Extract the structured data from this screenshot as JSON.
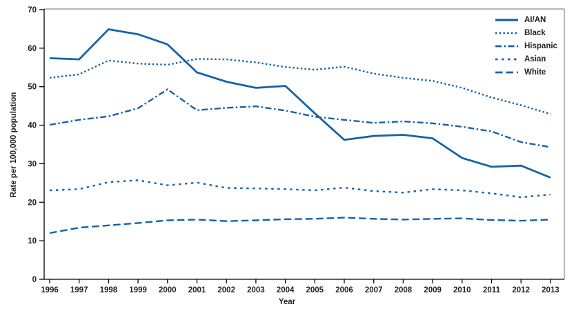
{
  "figure": {
    "ylabel": "Rate per 100,000 population",
    "xlabel": "Year"
  },
  "chart_data": {
    "type": "line",
    "x": [
      1996,
      1997,
      1998,
      1999,
      2000,
      2001,
      2002,
      2003,
      2004,
      2005,
      2006,
      2007,
      2008,
      2009,
      2010,
      2011,
      2012,
      2013
    ],
    "series": [
      {
        "name": "AI/AN",
        "line_style": "solid",
        "values": [
          57.4,
          57.1,
          64.9,
          63.6,
          61.0,
          53.7,
          51.3,
          49.7,
          50.2,
          43.1,
          36.2,
          37.2,
          37.5,
          36.6,
          31.5,
          29.2,
          29.5,
          26.4
        ]
      },
      {
        "name": "Black",
        "line_style": "dotted",
        "values": [
          52.3,
          53.2,
          56.8,
          56.0,
          55.7,
          57.2,
          57.1,
          56.3,
          55.1,
          54.4,
          55.2,
          53.4,
          52.3,
          51.5,
          49.7,
          47.2,
          45.2,
          42.9
        ]
      },
      {
        "name": "Hispanic",
        "line_style": "dash-dot",
        "values": [
          40.1,
          41.4,
          42.3,
          44.4,
          49.3,
          43.9,
          44.5,
          44.9,
          43.8,
          42.2,
          41.4,
          40.6,
          41.0,
          40.5,
          39.6,
          38.4,
          35.6,
          34.3
        ]
      },
      {
        "name": "Asian",
        "line_style": "short-dash",
        "values": [
          23.1,
          23.4,
          25.2,
          25.7,
          24.4,
          25.1,
          23.7,
          23.6,
          23.4,
          23.1,
          23.8,
          22.9,
          22.5,
          23.4,
          23.1,
          22.3,
          21.3,
          22.0
        ]
      },
      {
        "name": "White",
        "line_style": "long-dash",
        "values": [
          12.0,
          13.4,
          14.0,
          14.6,
          15.3,
          15.5,
          15.1,
          15.3,
          15.6,
          15.7,
          16.0,
          15.7,
          15.5,
          15.7,
          15.8,
          15.4,
          15.2,
          15.5
        ]
      }
    ],
    "ylim": [
      0,
      70
    ],
    "yticks": [
      0,
      10,
      20,
      30,
      40,
      50,
      60,
      70
    ],
    "xticks": [
      1996,
      1997,
      1998,
      1999,
      2000,
      2001,
      2002,
      2003,
      2004,
      2005,
      2006,
      2007,
      2008,
      2009,
      2010,
      2011,
      2012,
      2013
    ],
    "grid": false,
    "legend_position": "top-right-inside",
    "line_color": "#1562A9",
    "text_color": "#231F20",
    "axis_color": "#000000",
    "frame_color": "#6E6E6E"
  }
}
